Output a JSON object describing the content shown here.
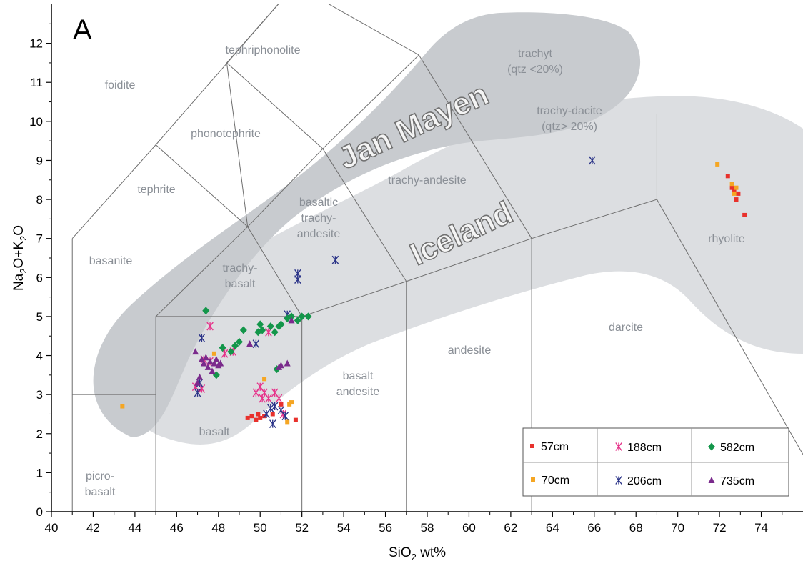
{
  "panel_label": "A",
  "region_labels": {
    "iceland": "Iceland",
    "jan_mayen": "Jan Mayen"
  },
  "colors": {
    "57cm": "#e8312c",
    "70cm": "#f5a623",
    "188cm": "#e6338a",
    "206cm": "#2b3488",
    "582cm": "#13964a",
    "735cm": "#7a2a8c",
    "field_line": "#6e6e6e",
    "field_label": "#8a8f96",
    "jan_mayen_fill": "#c8cbcf",
    "iceland_fill": "#dcdee1"
  },
  "field_labels": [
    [
      "foidite"
    ],
    [
      "tephriphonolite"
    ],
    [
      "phonotephrite"
    ],
    [
      "trachyt",
      "(qtz <20%)"
    ],
    [
      "trachy-dacite",
      "(qtz> 20%)"
    ],
    [
      "tephrite"
    ],
    [
      "trachy-andesite"
    ],
    [
      "basaltic",
      "trachy-",
      "andesite"
    ],
    [
      "basanite"
    ],
    [
      "trachy-",
      "basalt"
    ],
    [
      "rhyolite"
    ],
    [
      "darcite"
    ],
    [
      "andesite"
    ],
    [
      "basalt",
      "andesite"
    ],
    [
      "basalt"
    ],
    [
      "picro-",
      "basalt"
    ]
  ],
  "chart_data": {
    "type": "scatter",
    "xlabel": "SiO2 wt%",
    "ylabel": "Na2O+K2O",
    "xlim": [
      40,
      76
    ],
    "ylim": [
      0,
      13
    ],
    "x_ticks": [
      40,
      42,
      44,
      46,
      48,
      50,
      52,
      54,
      56,
      58,
      60,
      62,
      64,
      66,
      68,
      70,
      72,
      74
    ],
    "y_ticks": [
      0,
      1,
      2,
      3,
      4,
      5,
      6,
      7,
      8,
      9,
      10,
      11,
      12
    ],
    "grid": false,
    "legend_position": "bottom-right",
    "series": [
      {
        "name": "57cm",
        "marker": "square",
        "points": [
          [
            49.4,
            2.4
          ],
          [
            49.6,
            2.45
          ],
          [
            49.8,
            2.35
          ],
          [
            49.9,
            2.5
          ],
          [
            50.0,
            2.4
          ],
          [
            50.2,
            2.45
          ],
          [
            50.6,
            2.5
          ],
          [
            51.0,
            2.75
          ],
          [
            51.7,
            2.35
          ],
          [
            72.4,
            8.6
          ],
          [
            72.6,
            8.3
          ],
          [
            72.7,
            8.2
          ],
          [
            72.8,
            8.0
          ],
          [
            72.9,
            8.15
          ],
          [
            73.2,
            7.6
          ]
        ]
      },
      {
        "name": "70cm",
        "marker": "square",
        "points": [
          [
            43.4,
            2.7
          ],
          [
            47.8,
            4.05
          ],
          [
            50.2,
            3.4
          ],
          [
            51.3,
            2.3
          ],
          [
            51.4,
            2.75
          ],
          [
            51.5,
            2.8
          ],
          [
            71.9,
            8.9
          ],
          [
            72.6,
            8.4
          ],
          [
            72.7,
            8.15
          ],
          [
            72.8,
            8.3
          ]
        ]
      },
      {
        "name": "188cm",
        "marker": "asterisk",
        "points": [
          [
            46.9,
            3.2
          ],
          [
            47.2,
            3.15
          ],
          [
            47.3,
            3.9
          ],
          [
            47.6,
            3.85
          ],
          [
            47.6,
            4.75
          ],
          [
            48.3,
            4.05
          ],
          [
            48.7,
            4.1
          ],
          [
            49.8,
            3.05
          ],
          [
            50.0,
            3.2
          ],
          [
            50.1,
            2.9
          ],
          [
            50.2,
            3.05
          ],
          [
            50.4,
            2.9
          ],
          [
            50.7,
            3.05
          ],
          [
            50.4,
            4.6
          ],
          [
            50.9,
            2.9
          ],
          [
            51.1,
            2.5
          ]
        ]
      },
      {
        "name": "206cm",
        "marker": "asterisk",
        "points": [
          [
            47.0,
            3.05
          ],
          [
            47.1,
            3.3
          ],
          [
            47.2,
            4.45
          ],
          [
            49.8,
            4.3
          ],
          [
            50.3,
            2.5
          ],
          [
            50.5,
            2.65
          ],
          [
            50.6,
            2.25
          ],
          [
            50.7,
            2.7
          ],
          [
            51.0,
            2.6
          ],
          [
            51.3,
            5.05
          ],
          [
            51.2,
            2.45
          ],
          [
            51.8,
            5.95
          ],
          [
            51.8,
            6.1
          ],
          [
            53.6,
            6.45
          ],
          [
            65.9,
            9.0
          ]
        ]
      },
      {
        "name": "582cm",
        "marker": "diamond",
        "points": [
          [
            47.4,
            5.15
          ],
          [
            47.9,
            3.5
          ],
          [
            48.2,
            4.2
          ],
          [
            48.6,
            4.1
          ],
          [
            48.8,
            4.25
          ],
          [
            49.0,
            4.35
          ],
          [
            49.2,
            4.65
          ],
          [
            49.9,
            4.6
          ],
          [
            50.0,
            4.8
          ],
          [
            50.1,
            4.65
          ],
          [
            50.5,
            4.75
          ],
          [
            50.7,
            4.6
          ],
          [
            50.9,
            4.75
          ],
          [
            51.0,
            4.8
          ],
          [
            51.3,
            4.95
          ],
          [
            51.5,
            5.0
          ],
          [
            51.8,
            4.9
          ],
          [
            52.0,
            5.0
          ],
          [
            52.3,
            5.0
          ],
          [
            50.8,
            3.65
          ]
        ]
      },
      {
        "name": "735cm",
        "marker": "triangle",
        "points": [
          [
            46.9,
            4.1
          ],
          [
            47.0,
            3.3
          ],
          [
            47.1,
            3.45
          ],
          [
            47.2,
            3.9
          ],
          [
            47.3,
            3.8
          ],
          [
            47.4,
            3.95
          ],
          [
            47.5,
            3.7
          ],
          [
            47.6,
            3.85
          ],
          [
            47.7,
            3.6
          ],
          [
            47.8,
            3.8
          ],
          [
            47.9,
            3.9
          ],
          [
            48.0,
            3.75
          ],
          [
            48.1,
            3.8
          ],
          [
            49.5,
            4.3
          ],
          [
            50.9,
            3.7
          ],
          [
            51.0,
            3.75
          ],
          [
            51.3,
            3.8
          ],
          [
            51.5,
            4.9
          ]
        ]
      }
    ]
  }
}
